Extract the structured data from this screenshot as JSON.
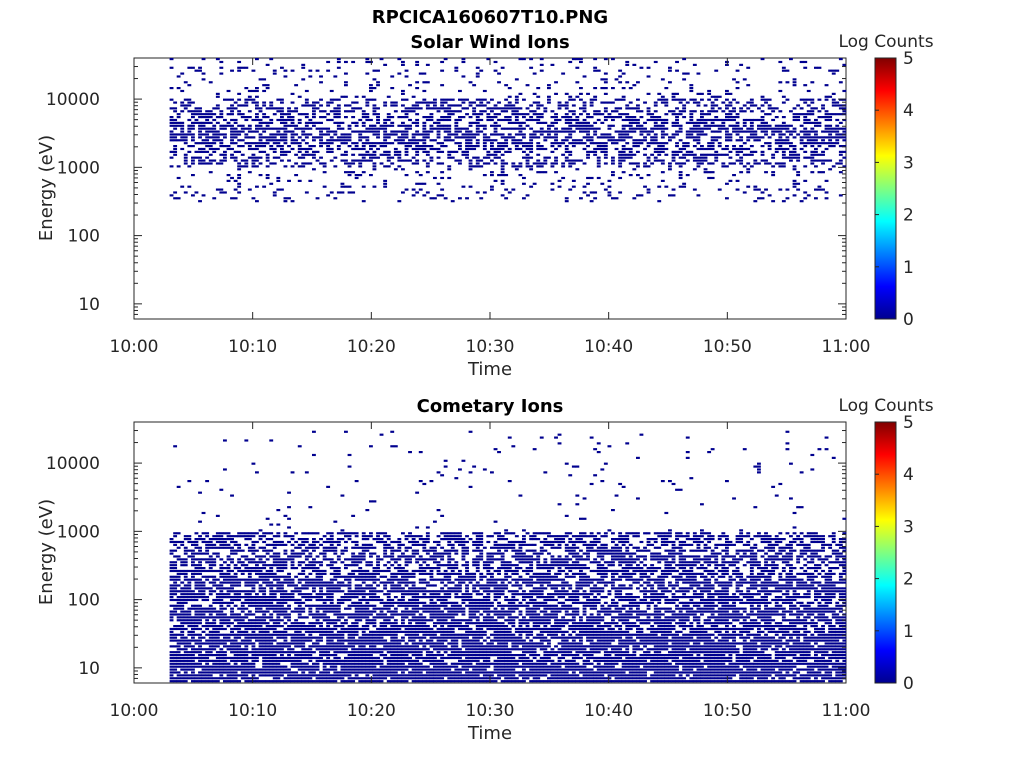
{
  "figure": {
    "title": "RPCICA160607T10.PNG"
  },
  "colorbar": {
    "label": "Log Counts",
    "ticks": [
      "0",
      "1",
      "2",
      "3",
      "4",
      "5"
    ],
    "range": [
      0,
      5
    ],
    "colormap": "jet"
  },
  "chart_data": [
    {
      "type": "heatmap",
      "title": "Solar Wind Ions",
      "xlabel": "Time",
      "ylabel": "Energy (eV)",
      "x_ticks": [
        "10:00",
        "10:10",
        "10:20",
        "10:30",
        "10:40",
        "10:50",
        "11:00"
      ],
      "y_ticks": [
        "10",
        "100",
        "1000",
        "10000"
      ],
      "xlim": [
        "10:00",
        "11:00"
      ],
      "ylim": [
        6,
        40000
      ],
      "y_scale": "log",
      "data_time_range": [
        "10:03",
        "11:00"
      ],
      "occupied_energy_range": [
        300,
        40000
      ],
      "dense_energy_range": [
        1000,
        10000
      ],
      "cell_value": 0
    },
    {
      "type": "heatmap",
      "title": "Cometary Ions",
      "xlabel": "Time",
      "ylabel": "Energy (eV)",
      "x_ticks": [
        "10:00",
        "10:10",
        "10:20",
        "10:30",
        "10:40",
        "10:50",
        "11:00"
      ],
      "y_ticks": [
        "10",
        "100",
        "1000",
        "10000"
      ],
      "xlim": [
        "10:00",
        "11:00"
      ],
      "ylim": [
        6,
        40000
      ],
      "y_scale": "log",
      "data_time_range": [
        "10:03",
        "11:00"
      ],
      "occupied_energy_range": [
        6,
        30000
      ],
      "dense_energy_range": [
        6,
        1000
      ],
      "cell_value": 0
    }
  ]
}
